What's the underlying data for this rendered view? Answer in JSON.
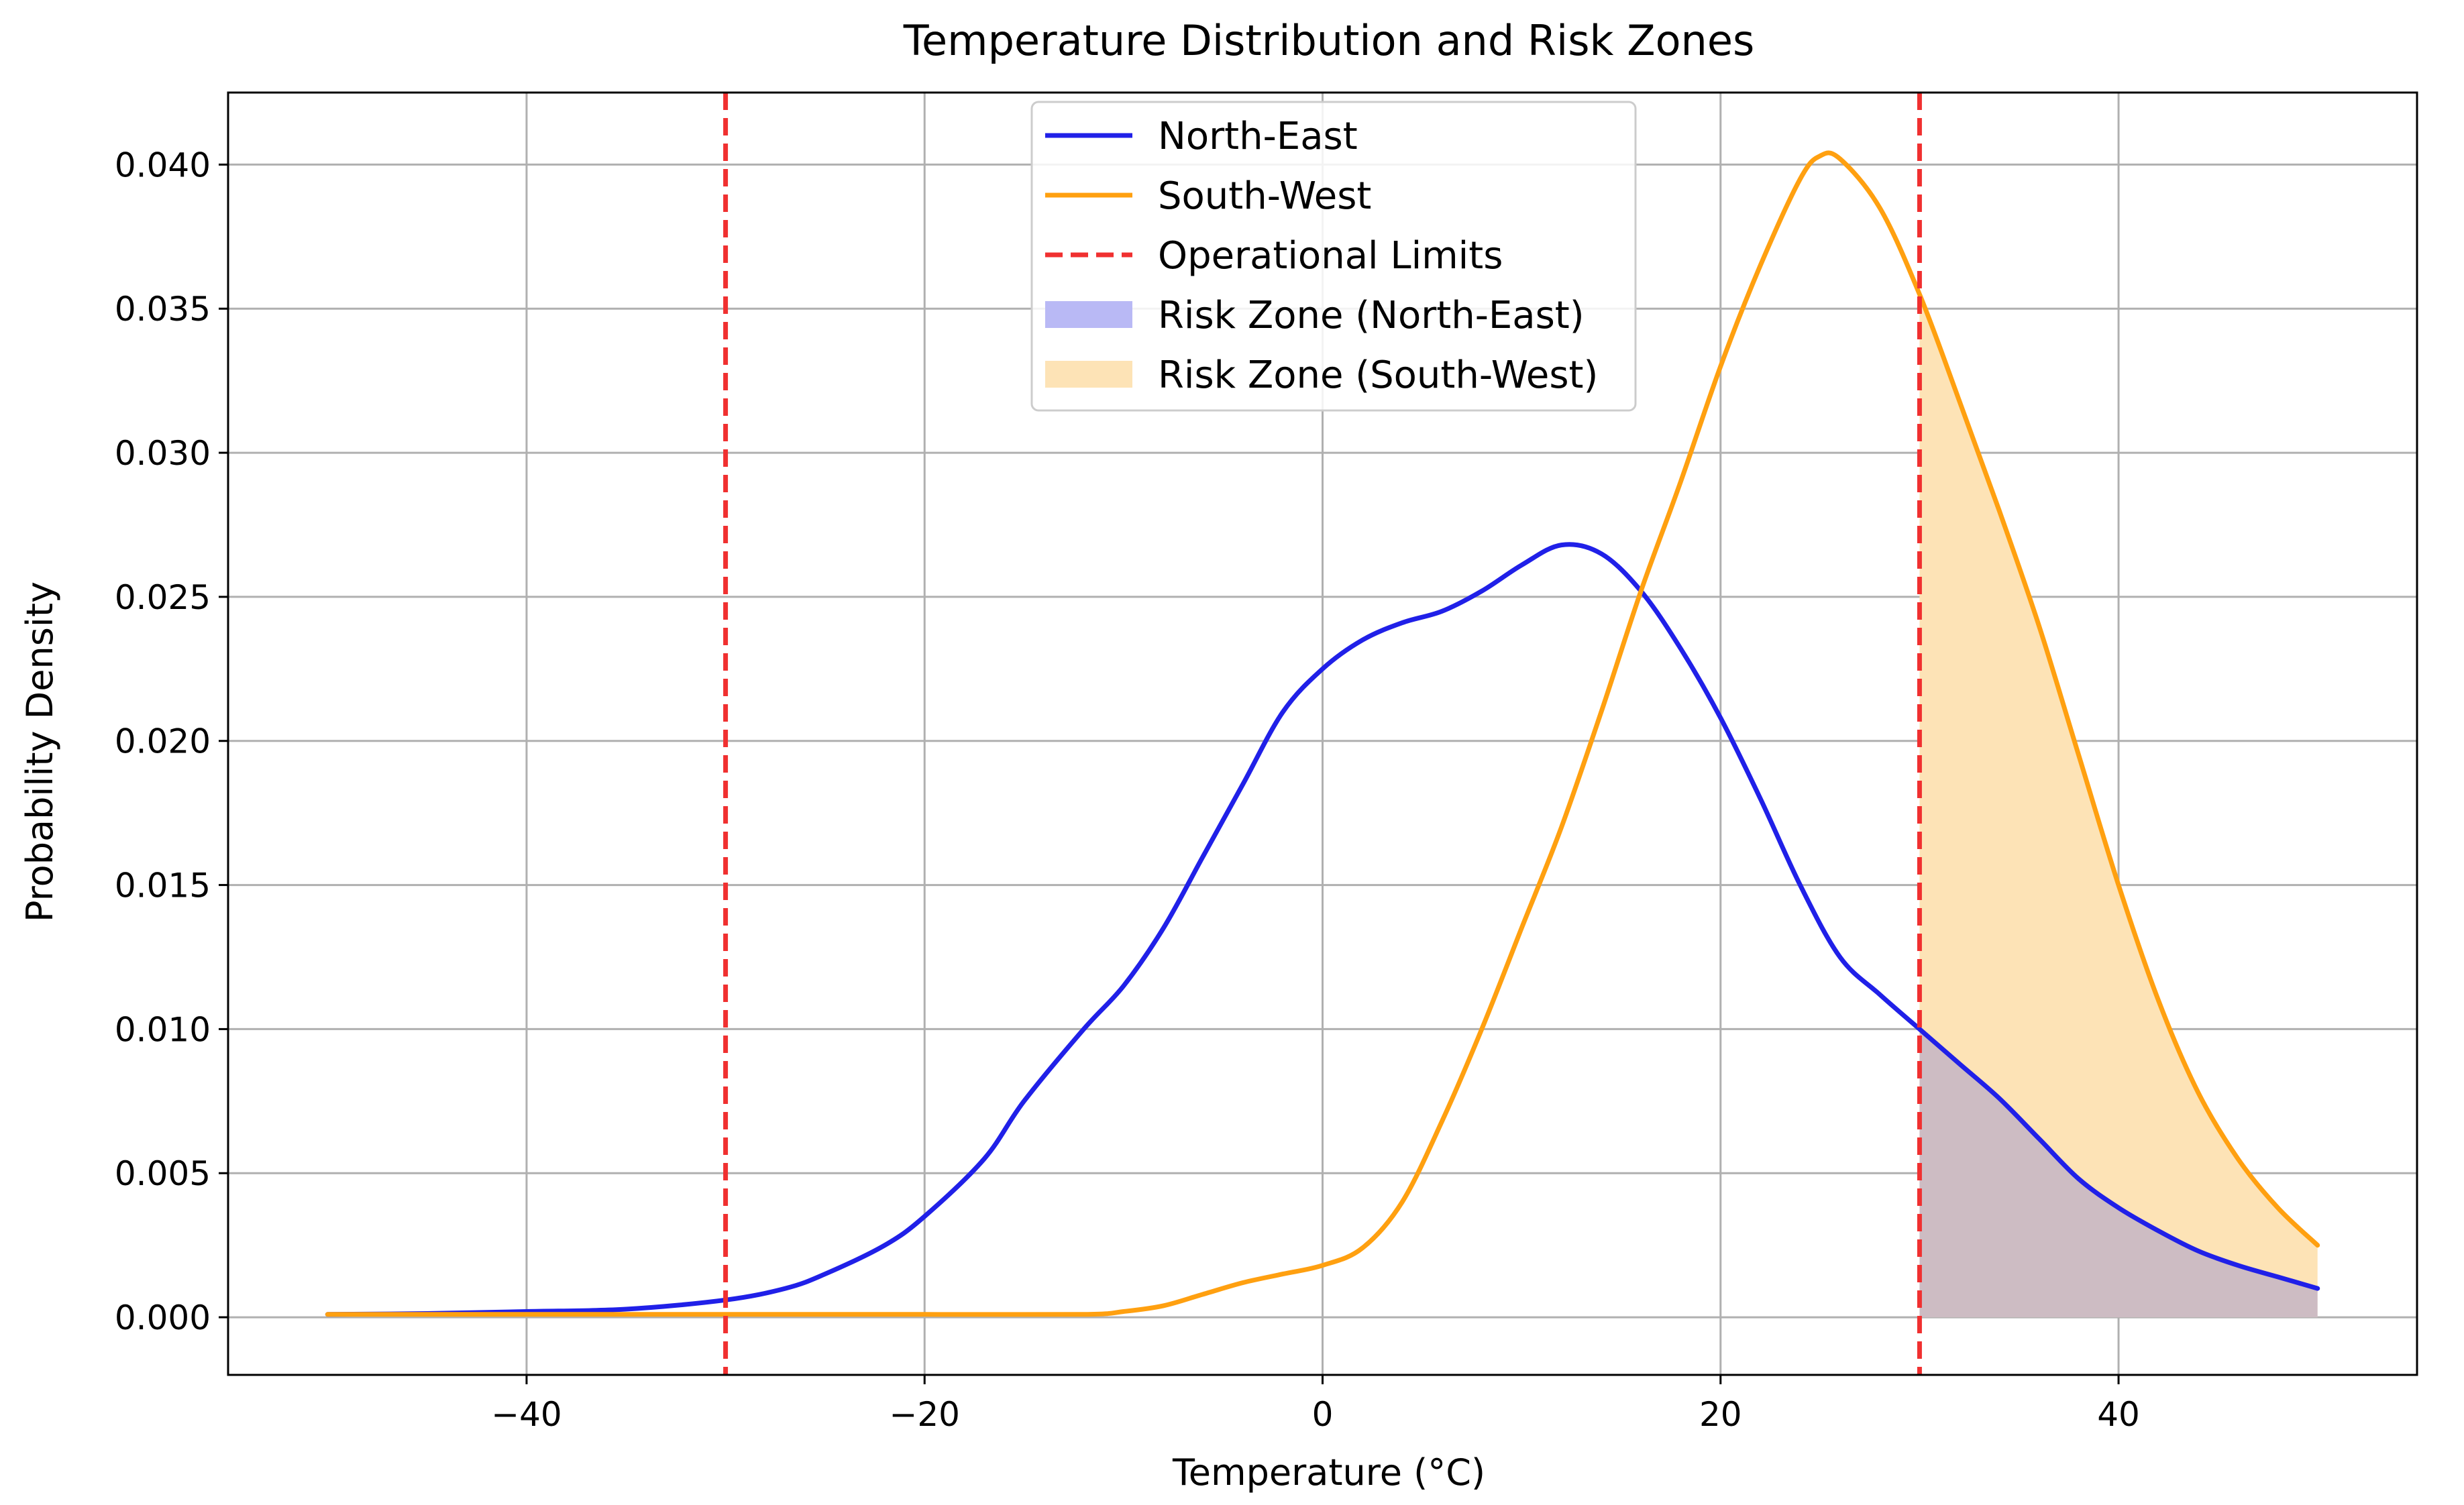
{
  "chart_data": {
    "type": "line",
    "title": "Temperature Distribution and Risk Zones",
    "xlabel": "Temperature (°C)",
    "ylabel": "Probability Density",
    "xlim": [
      -55,
      55
    ],
    "ylim": [
      -0.002,
      0.0425
    ],
    "xticks": [
      -40,
      -20,
      0,
      20,
      40
    ],
    "xtick_labels": [
      "−40",
      "−20",
      "0",
      "20",
      "40"
    ],
    "yticks": [
      0.0,
      0.005,
      0.01,
      0.015,
      0.02,
      0.025,
      0.03,
      0.035,
      0.04
    ],
    "ytick_labels": [
      "0.000",
      "0.005",
      "0.010",
      "0.015",
      "0.020",
      "0.025",
      "0.030",
      "0.035",
      "0.040"
    ],
    "grid": true,
    "legend_position": "top-center",
    "operational_limits": [
      -30,
      30
    ],
    "risk_threshold": 30,
    "series": [
      {
        "name": "North-East",
        "color": "#2020e8",
        "points": [
          [
            -50,
            0.0001
          ],
          [
            -45,
            0.00013
          ],
          [
            -40,
            0.0002
          ],
          [
            -35,
            0.00028
          ],
          [
            -30,
            0.0006
          ],
          [
            -27,
            0.001
          ],
          [
            -25,
            0.0015
          ],
          [
            -22,
            0.0025
          ],
          [
            -20,
            0.0035
          ],
          [
            -17,
            0.0055
          ],
          [
            -15,
            0.0075
          ],
          [
            -12,
            0.01
          ],
          [
            -10,
            0.0115
          ],
          [
            -8,
            0.0135
          ],
          [
            -6,
            0.016
          ],
          [
            -4,
            0.0185
          ],
          [
            -2,
            0.021
          ],
          [
            0,
            0.0225
          ],
          [
            2,
            0.0235
          ],
          [
            4,
            0.0241
          ],
          [
            6,
            0.0245
          ],
          [
            8,
            0.0252
          ],
          [
            10,
            0.0261
          ],
          [
            12,
            0.0268
          ],
          [
            14,
            0.0265
          ],
          [
            16,
            0.0252
          ],
          [
            18,
            0.0232
          ],
          [
            20,
            0.0208
          ],
          [
            22,
            0.018
          ],
          [
            24,
            0.015
          ],
          [
            26,
            0.0125
          ],
          [
            28,
            0.0112
          ],
          [
            30,
            0.01
          ],
          [
            32,
            0.0088
          ],
          [
            34,
            0.0076
          ],
          [
            36,
            0.0062
          ],
          [
            38,
            0.0048
          ],
          [
            40,
            0.0038
          ],
          [
            42,
            0.003
          ],
          [
            44,
            0.0023
          ],
          [
            46,
            0.0018
          ],
          [
            48,
            0.0014
          ],
          [
            50,
            0.001
          ]
        ]
      },
      {
        "name": "South-West",
        "color": "#ffa010",
        "points": [
          [
            -50,
            0.0001
          ],
          [
            -40,
            0.0001
          ],
          [
            -30,
            0.0001
          ],
          [
            -20,
            0.0001
          ],
          [
            -12,
            0.0001
          ],
          [
            -10,
            0.0002
          ],
          [
            -8,
            0.0004
          ],
          [
            -6,
            0.0008
          ],
          [
            -4,
            0.0012
          ],
          [
            -2,
            0.0015
          ],
          [
            0,
            0.0018
          ],
          [
            2,
            0.0024
          ],
          [
            4,
            0.004
          ],
          [
            6,
            0.0068
          ],
          [
            8,
            0.01
          ],
          [
            10,
            0.0135
          ],
          [
            12,
            0.017
          ],
          [
            14,
            0.021
          ],
          [
            16,
            0.0252
          ],
          [
            18,
            0.029
          ],
          [
            20,
            0.033
          ],
          [
            22,
            0.0365
          ],
          [
            24,
            0.0395
          ],
          [
            25,
            0.0403
          ],
          [
            26,
            0.0402
          ],
          [
            28,
            0.0385
          ],
          [
            30,
            0.0355
          ],
          [
            32,
            0.0318
          ],
          [
            34,
            0.028
          ],
          [
            36,
            0.024
          ],
          [
            38,
            0.0195
          ],
          [
            40,
            0.015
          ],
          [
            42,
            0.011
          ],
          [
            44,
            0.0078
          ],
          [
            46,
            0.0055
          ],
          [
            48,
            0.0038
          ],
          [
            50,
            0.0025
          ]
        ]
      }
    ],
    "legend": [
      {
        "label": "North-East",
        "kind": "line",
        "color": "#2020e8"
      },
      {
        "label": "South-West",
        "kind": "line",
        "color": "#ffa010"
      },
      {
        "label": "Operational Limits",
        "kind": "dashed",
        "color": "#f03030"
      },
      {
        "label": "Risk Zone (North-East)",
        "kind": "patch",
        "color": "#b9b9f5"
      },
      {
        "label": "Risk Zone (South-West)",
        "kind": "patch",
        "color": "#fde3b6"
      }
    ]
  }
}
